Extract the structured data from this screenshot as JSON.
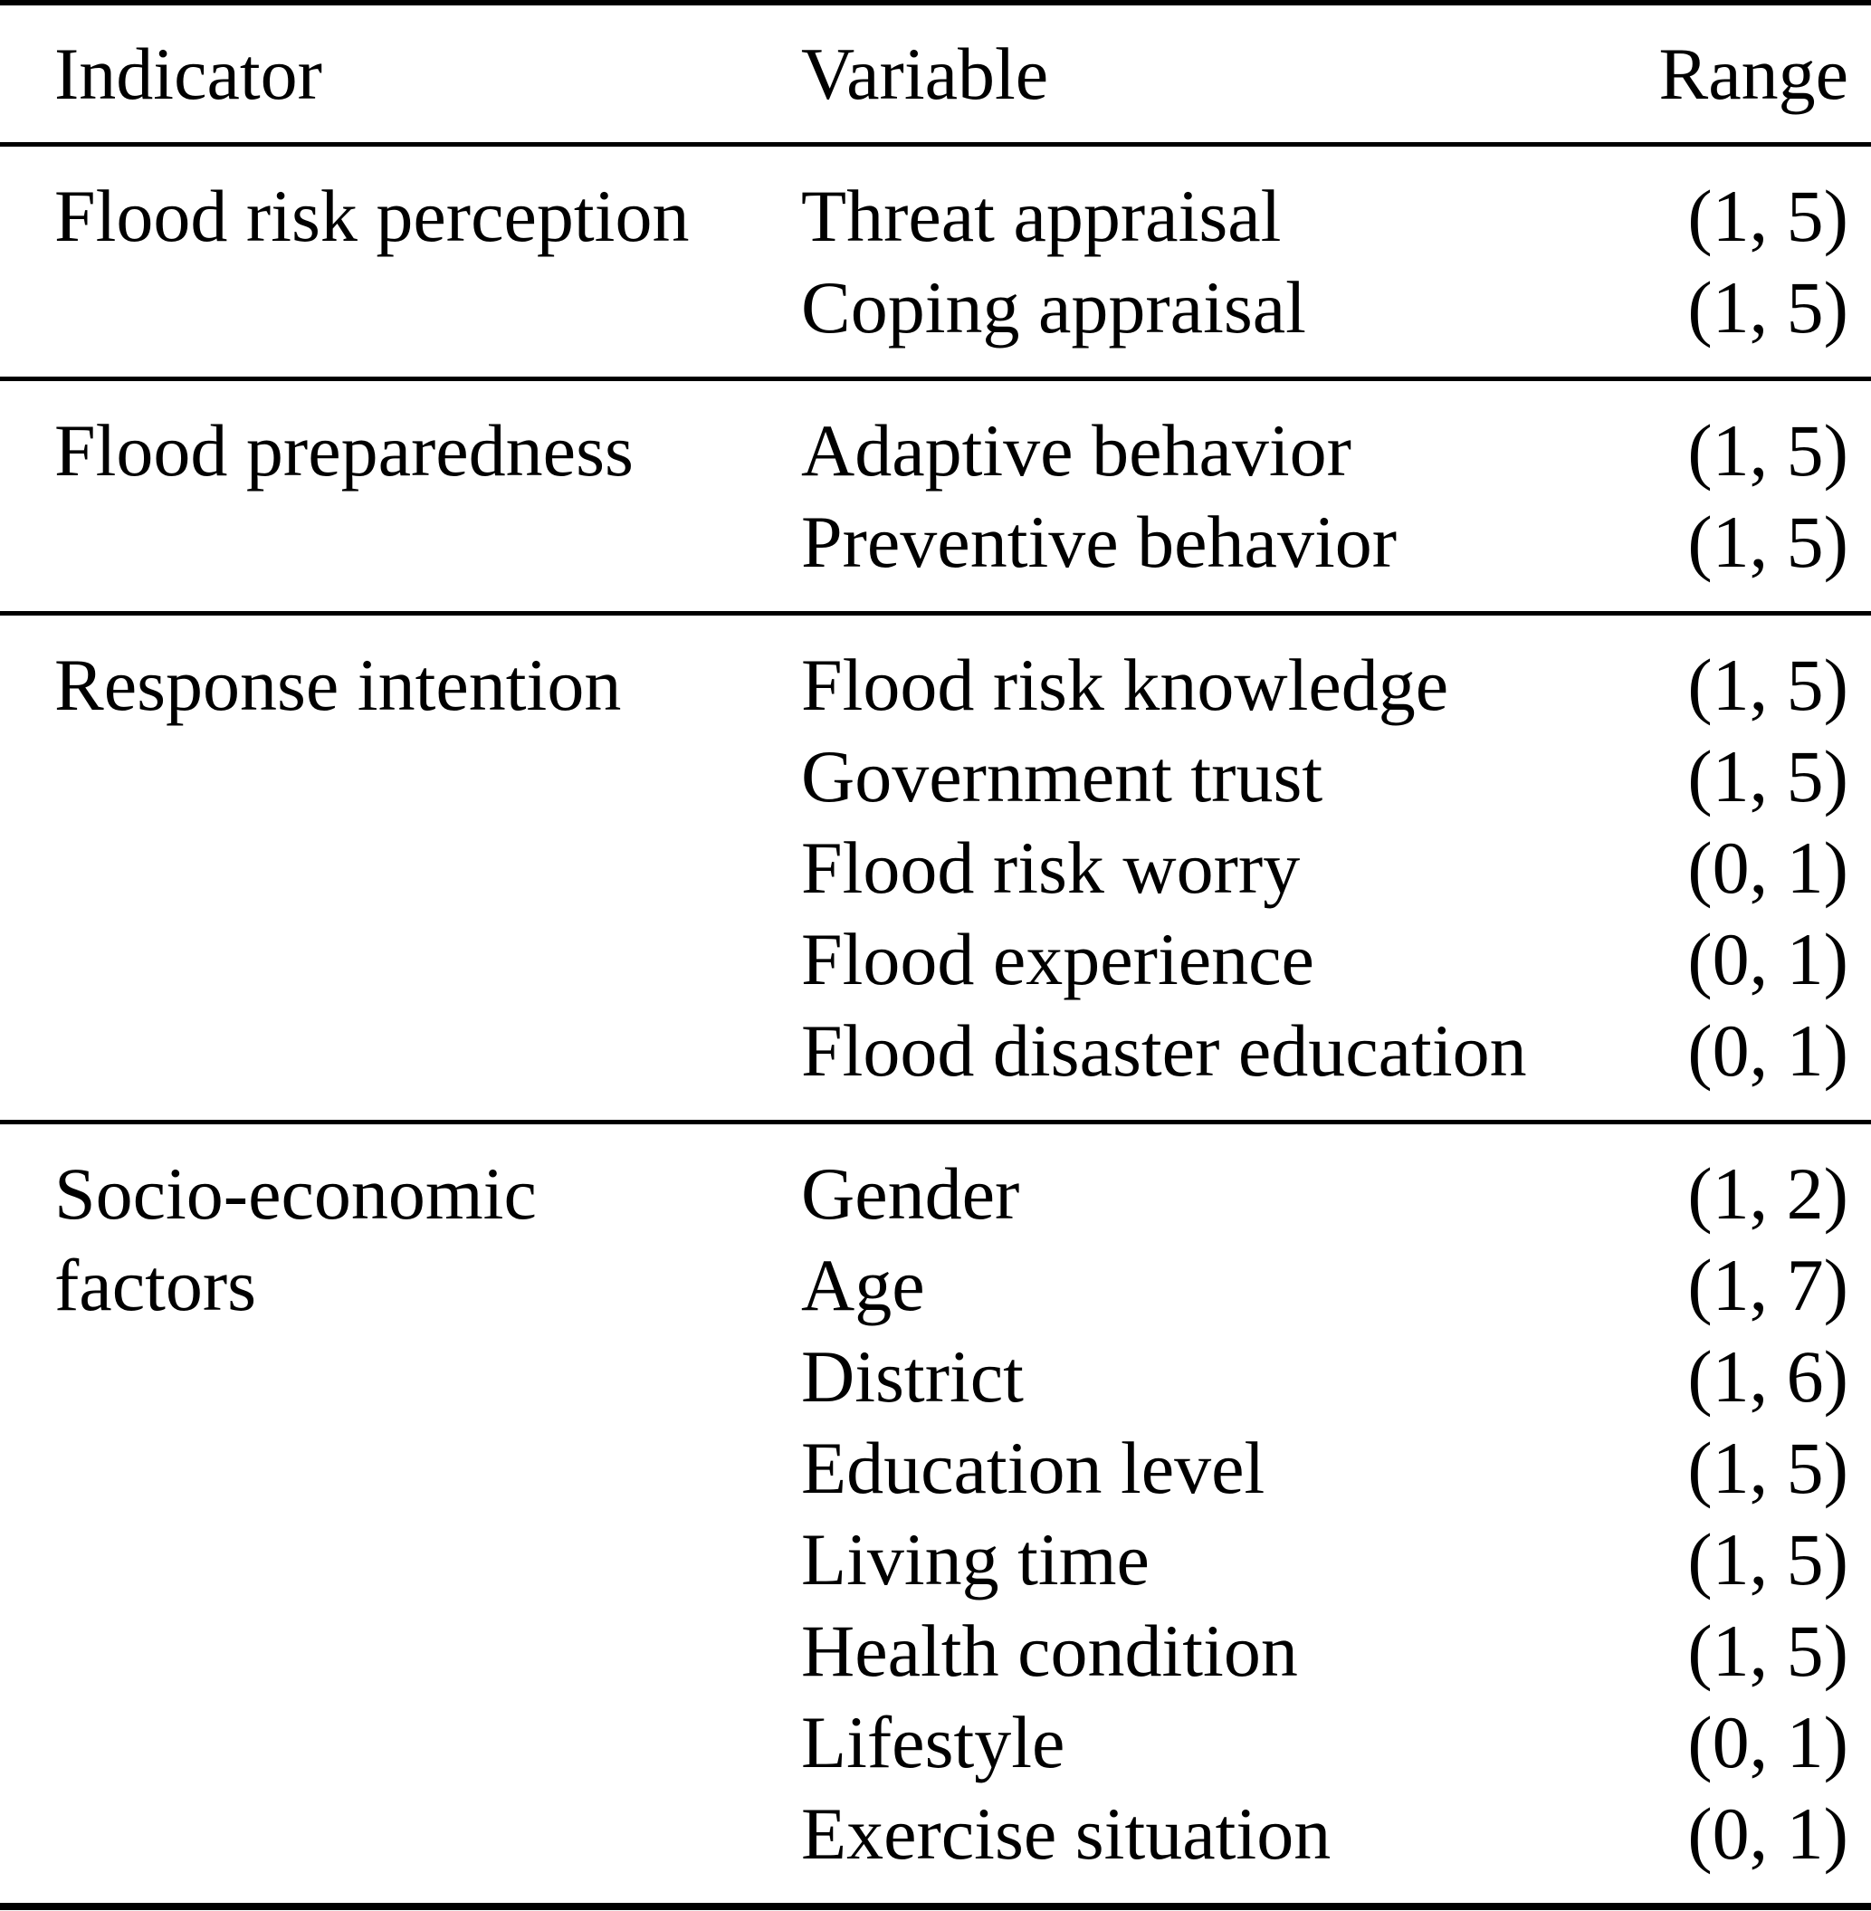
{
  "table": {
    "headers": [
      "Indicator",
      "Variable",
      "Range"
    ],
    "sections": [
      {
        "indicator": "Flood risk perception",
        "rows": [
          {
            "variable": "Threat appraisal",
            "range": "(1, 5)"
          },
          {
            "variable": "Coping appraisal",
            "range": "(1, 5)"
          }
        ]
      },
      {
        "indicator": "Flood preparedness",
        "rows": [
          {
            "variable": "Adaptive behavior",
            "range": "(1, 5)"
          },
          {
            "variable": "Preventive behavior",
            "range": "(1, 5)"
          }
        ]
      },
      {
        "indicator": "Response intention",
        "rows": [
          {
            "variable": "Flood risk knowledge",
            "range": "(1, 5)"
          },
          {
            "variable": "Government trust",
            "range": "(1, 5)"
          },
          {
            "variable": "Flood risk worry",
            "range": "(0, 1)"
          },
          {
            "variable": "Flood experience",
            "range": "(0, 1)"
          },
          {
            "variable": "Flood disaster education",
            "range": "(0, 1)"
          }
        ]
      },
      {
        "indicator": "Socio-economic factors",
        "rows": [
          {
            "variable": "Gender",
            "range": "(1, 2)"
          },
          {
            "variable": "Age",
            "range": "(1, 7)"
          },
          {
            "variable": "District",
            "range": "(1, 6)"
          },
          {
            "variable": "Education level",
            "range": "(1, 5)"
          },
          {
            "variable": "Living time",
            "range": "(1, 5)"
          },
          {
            "variable": "Health condition",
            "range": "(1, 5)"
          },
          {
            "variable": "Lifestyle",
            "range": "(0, 1)"
          },
          {
            "variable": "Exercise situation",
            "range": "(0, 1)"
          }
        ]
      }
    ]
  },
  "colors": {
    "text": "#000000",
    "background": "#ffffff",
    "rule": "#000000"
  }
}
